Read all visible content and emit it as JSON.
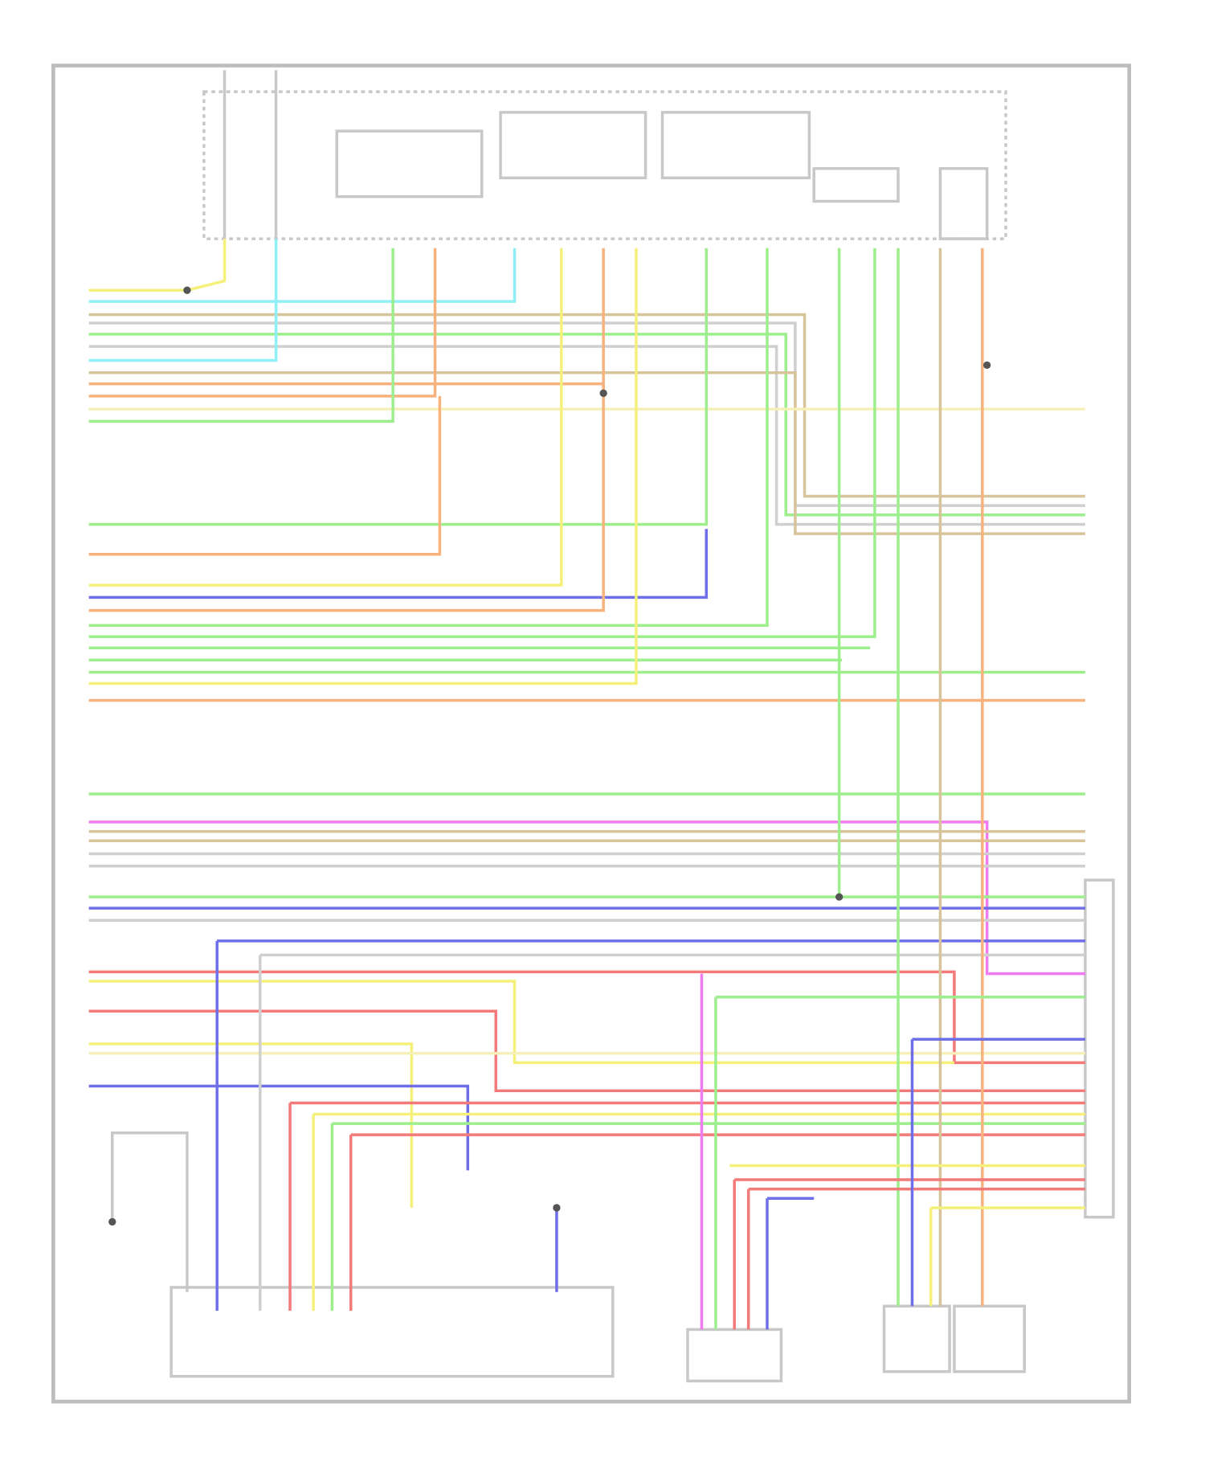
{
  "diagram": {
    "frame_color": "#bdbdbd",
    "component_color": "#c8c8c8",
    "wire_colors": {
      "yellow": "#f4f07a",
      "cyan": "#8ef0f4",
      "tan": "#d8c49a",
      "gray": "#cfcfcf",
      "orange": "#f7b27e",
      "green": "#9cef8c",
      "blue": "#6e6ee8",
      "magenta": "#f07af0",
      "red": "#f47a7a",
      "paleyellow": "#f6f0b8"
    }
  }
}
